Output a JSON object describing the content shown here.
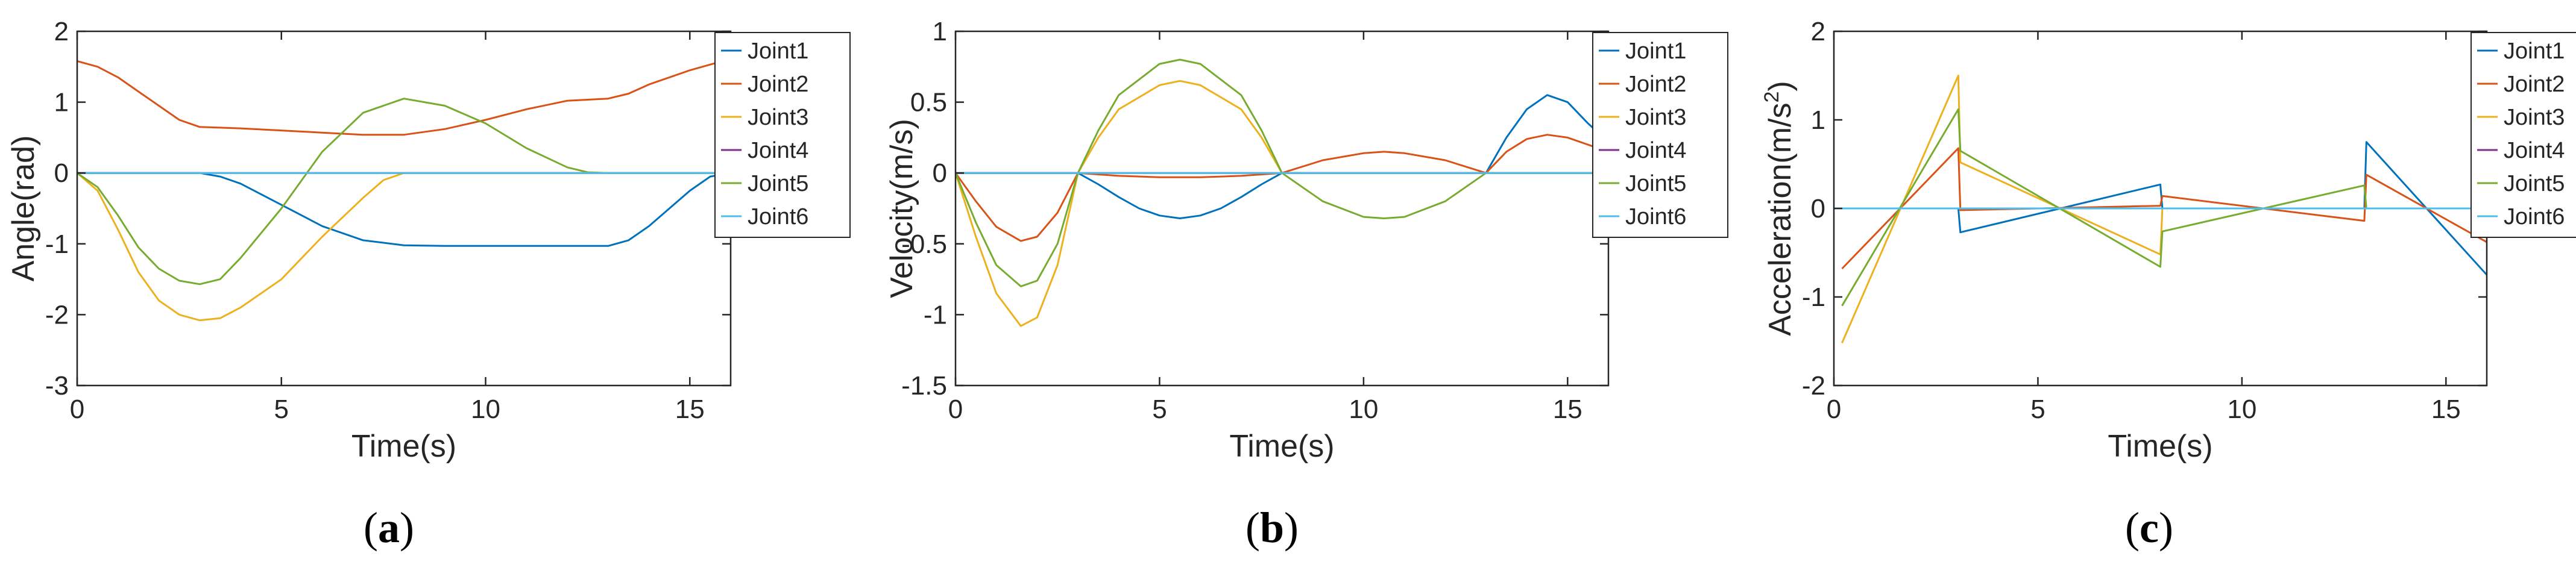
{
  "colors": {
    "Joint1": "#0072BD",
    "Joint2": "#D95319",
    "Joint3": "#EDB120",
    "Joint4": "#7E2F8E",
    "Joint5": "#77AC30",
    "Joint6": "#4DBEEE"
  },
  "chart_data": [
    {
      "type": "line",
      "caption": {
        "open": "(",
        "letter": "a",
        "close": ")"
      },
      "xlabel": "Time(s)",
      "ylabel": "Angle(rad)",
      "xlim": [
        0,
        16
      ],
      "ylim": [
        -3,
        2
      ],
      "xticks": [
        0,
        5,
        10,
        15
      ],
      "yticks": [
        -3,
        -2,
        -1,
        0,
        1,
        2
      ],
      "legend": "top-right",
      "series": [
        {
          "name": "Joint1",
          "points": [
            [
              0,
              0
            ],
            [
              3,
              0
            ],
            [
              3.5,
              -0.05
            ],
            [
              4,
              -0.15
            ],
            [
              5,
              -0.45
            ],
            [
              6,
              -0.75
            ],
            [
              7,
              -0.95
            ],
            [
              8,
              -1.02
            ],
            [
              9,
              -1.03
            ],
            [
              10,
              -1.03
            ],
            [
              11,
              -1.03
            ],
            [
              12,
              -1.03
            ],
            [
              13,
              -1.03
            ],
            [
              13.5,
              -0.95
            ],
            [
              14,
              -0.75
            ],
            [
              14.5,
              -0.5
            ],
            [
              15,
              -0.25
            ],
            [
              15.5,
              -0.05
            ],
            [
              16,
              0
            ]
          ]
        },
        {
          "name": "Joint2",
          "points": [
            [
              0,
              1.58
            ],
            [
              0.5,
              1.5
            ],
            [
              1,
              1.35
            ],
            [
              1.5,
              1.15
            ],
            [
              2,
              0.95
            ],
            [
              2.5,
              0.75
            ],
            [
              3,
              0.65
            ],
            [
              4,
              0.63
            ],
            [
              5,
              0.6
            ],
            [
              6,
              0.57
            ],
            [
              7,
              0.54
            ],
            [
              8,
              0.54
            ],
            [
              9,
              0.62
            ],
            [
              10,
              0.75
            ],
            [
              11,
              0.9
            ],
            [
              12,
              1.02
            ],
            [
              13,
              1.05
            ],
            [
              13.5,
              1.12
            ],
            [
              14,
              1.25
            ],
            [
              15,
              1.45
            ],
            [
              15.8,
              1.58
            ]
          ]
        },
        {
          "name": "Joint3",
          "points": [
            [
              0,
              0
            ],
            [
              0.5,
              -0.25
            ],
            [
              1,
              -0.8
            ],
            [
              1.5,
              -1.4
            ],
            [
              2,
              -1.8
            ],
            [
              2.5,
              -2.0
            ],
            [
              3,
              -2.08
            ],
            [
              3.5,
              -2.05
            ],
            [
              4,
              -1.9
            ],
            [
              5,
              -1.5
            ],
            [
              6,
              -0.9
            ],
            [
              7,
              -0.35
            ],
            [
              7.5,
              -0.1
            ],
            [
              8,
              0
            ],
            [
              16,
              0
            ]
          ]
        },
        {
          "name": "Joint4",
          "points": [
            [
              0,
              0
            ],
            [
              16,
              0
            ]
          ]
        },
        {
          "name": "Joint5",
          "points": [
            [
              0,
              0
            ],
            [
              0.5,
              -0.2
            ],
            [
              1,
              -0.6
            ],
            [
              1.5,
              -1.05
            ],
            [
              2,
              -1.35
            ],
            [
              2.5,
              -1.52
            ],
            [
              3,
              -1.57
            ],
            [
              3.5,
              -1.5
            ],
            [
              4,
              -1.2
            ],
            [
              5,
              -0.5
            ],
            [
              6,
              0.3
            ],
            [
              7,
              0.85
            ],
            [
              8,
              1.05
            ],
            [
              9,
              0.95
            ],
            [
              10,
              0.7
            ],
            [
              11,
              0.35
            ],
            [
              12,
              0.08
            ],
            [
              12.5,
              0.01
            ],
            [
              13,
              0
            ],
            [
              16,
              0
            ]
          ]
        },
        {
          "name": "Joint6",
          "points": [
            [
              0,
              0
            ],
            [
              16,
              0
            ]
          ]
        }
      ]
    },
    {
      "type": "line",
      "caption": {
        "open": "(",
        "letter": "b",
        "close": ")"
      },
      "xlabel": "Time(s)",
      "ylabel": "Velocity(m/s)",
      "xlim": [
        0,
        16
      ],
      "ylim": [
        -1.5,
        1
      ],
      "xticks": [
        0,
        5,
        10,
        15
      ],
      "yticks": [
        -1.5,
        -1,
        -0.5,
        0,
        0.5,
        1
      ],
      "legend": "top-right",
      "series": [
        {
          "name": "Joint1",
          "points": [
            [
              0,
              0
            ],
            [
              3,
              0
            ],
            [
              3.5,
              -0.08
            ],
            [
              4,
              -0.17
            ],
            [
              4.5,
              -0.25
            ],
            [
              5,
              -0.3
            ],
            [
              5.5,
              -0.32
            ],
            [
              6,
              -0.3
            ],
            [
              6.5,
              -0.25
            ],
            [
              7,
              -0.17
            ],
            [
              7.5,
              -0.08
            ],
            [
              8,
              0
            ],
            [
              13,
              0
            ],
            [
              13.5,
              0.25
            ],
            [
              14,
              0.45
            ],
            [
              14.5,
              0.55
            ],
            [
              15,
              0.5
            ],
            [
              15.5,
              0.35
            ],
            [
              16,
              0.22
            ]
          ]
        },
        {
          "name": "Joint2",
          "points": [
            [
              0,
              0
            ],
            [
              0.5,
              -0.2
            ],
            [
              1,
              -0.38
            ],
            [
              1.6,
              -0.48
            ],
            [
              2,
              -0.45
            ],
            [
              2.5,
              -0.28
            ],
            [
              3,
              0
            ],
            [
              4,
              -0.02
            ],
            [
              5,
              -0.03
            ],
            [
              5.5,
              -0.03
            ],
            [
              6,
              -0.03
            ],
            [
              7,
              -0.02
            ],
            [
              8,
              0
            ],
            [
              9,
              0.09
            ],
            [
              10,
              0.14
            ],
            [
              10.5,
              0.15
            ],
            [
              11,
              0.14
            ],
            [
              12,
              0.09
            ],
            [
              13,
              0
            ],
            [
              13.5,
              0.15
            ],
            [
              14,
              0.24
            ],
            [
              14.5,
              0.27
            ],
            [
              15,
              0.25
            ],
            [
              15.5,
              0.2
            ],
            [
              16,
              0.15
            ]
          ]
        },
        {
          "name": "Joint3",
          "points": [
            [
              0,
              0
            ],
            [
              0.5,
              -0.45
            ],
            [
              1,
              -0.85
            ],
            [
              1.6,
              -1.08
            ],
            [
              2,
              -1.02
            ],
            [
              2.5,
              -0.65
            ],
            [
              3,
              0
            ],
            [
              3.5,
              0.25
            ],
            [
              4,
              0.45
            ],
            [
              5,
              0.62
            ],
            [
              5.5,
              0.65
            ],
            [
              6,
              0.62
            ],
            [
              7,
              0.45
            ],
            [
              7.5,
              0.25
            ],
            [
              8,
              0
            ],
            [
              16,
              0
            ]
          ]
        },
        {
          "name": "Joint4",
          "points": [
            [
              0,
              0
            ],
            [
              16,
              0
            ]
          ]
        },
        {
          "name": "Joint5",
          "points": [
            [
              0,
              0
            ],
            [
              0.5,
              -0.35
            ],
            [
              1,
              -0.65
            ],
            [
              1.6,
              -0.8
            ],
            [
              2,
              -0.76
            ],
            [
              2.5,
              -0.5
            ],
            [
              3,
              0
            ],
            [
              3.5,
              0.3
            ],
            [
              4,
              0.55
            ],
            [
              5,
              0.77
            ],
            [
              5.5,
              0.8
            ],
            [
              6,
              0.77
            ],
            [
              7,
              0.55
            ],
            [
              7.5,
              0.3
            ],
            [
              8,
              0
            ],
            [
              8.5,
              -0.1
            ],
            [
              9,
              -0.2
            ],
            [
              10,
              -0.31
            ],
            [
              10.5,
              -0.32
            ],
            [
              11,
              -0.31
            ],
            [
              12,
              -0.2
            ],
            [
              12.5,
              -0.1
            ],
            [
              13,
              0
            ],
            [
              16,
              0
            ]
          ]
        },
        {
          "name": "Joint6",
          "points": [
            [
              0,
              0
            ],
            [
              16,
              0
            ]
          ]
        }
      ]
    },
    {
      "type": "line",
      "caption": {
        "open": "(",
        "letter": "c",
        "close": ")"
      },
      "xlabel": "Time(s)",
      "ylabel": "Acceleration(m/s",
      "ylabel_sup": "2",
      "ylabel_end": ")",
      "xlim": [
        0,
        16
      ],
      "ylim": [
        -2,
        2
      ],
      "xticks": [
        0,
        5,
        10,
        15
      ],
      "yticks": [
        -2,
        -1,
        0,
        1,
        2
      ],
      "legend": "top-right",
      "series": [
        {
          "name": "Joint1",
          "points": [
            [
              0,
              0
            ],
            [
              3.05,
              0
            ],
            [
              3.1,
              -0.27
            ],
            [
              8,
              0.27
            ],
            [
              8.05,
              0
            ],
            [
              13,
              0
            ],
            [
              13.05,
              0.75
            ],
            [
              16,
              -0.75
            ]
          ]
        },
        {
          "name": "Joint2",
          "points": [
            [
              0.2,
              -0.68
            ],
            [
              3.05,
              0.68
            ],
            [
              3.1,
              -0.02
            ],
            [
              8,
              0.03
            ],
            [
              8.05,
              0.14
            ],
            [
              13,
              -0.14
            ],
            [
              13.05,
              0.38
            ],
            [
              16,
              -0.38
            ]
          ]
        },
        {
          "name": "Joint3",
          "points": [
            [
              0.2,
              -1.52
            ],
            [
              3.05,
              1.5
            ],
            [
              3.1,
              0.52
            ],
            [
              8,
              -0.52
            ],
            [
              8.05,
              0
            ],
            [
              16,
              0
            ]
          ]
        },
        {
          "name": "Joint4",
          "points": [
            [
              0,
              0
            ],
            [
              16,
              0
            ]
          ]
        },
        {
          "name": "Joint5",
          "points": [
            [
              0.2,
              -1.1
            ],
            [
              3.05,
              1.12
            ],
            [
              3.1,
              0.65
            ],
            [
              8,
              -0.66
            ],
            [
              8.05,
              -0.26
            ],
            [
              13,
              0.26
            ],
            [
              13.05,
              0
            ],
            [
              16,
              0
            ]
          ]
        },
        {
          "name": "Joint6",
          "points": [
            [
              0,
              0
            ],
            [
              16,
              0
            ]
          ]
        }
      ]
    }
  ]
}
